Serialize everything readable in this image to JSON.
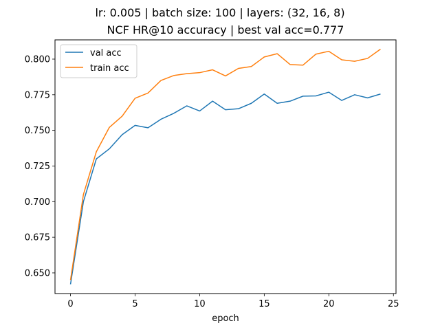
{
  "chart_data": {
    "type": "line",
    "title_line1": "lr: 0.005 | batch size: 100 | layers: (32, 16, 8)",
    "title_line2": "NCF HR@10 accuracy | best val acc=0.777",
    "xlabel": "epoch",
    "ylabel": "",
    "xlim": [
      -1.2,
      25.2
    ],
    "ylim": [
      0.6355,
      0.8135
    ],
    "xticks": [
      0,
      5,
      10,
      15,
      20,
      25
    ],
    "yticks": [
      0.65,
      0.675,
      0.7,
      0.725,
      0.75,
      0.775,
      0.8
    ],
    "ytick_labels": [
      "0.650",
      "0.675",
      "0.700",
      "0.725",
      "0.750",
      "0.775",
      "0.800"
    ],
    "grid": false,
    "legend_position": "top-left",
    "x": [
      0,
      1,
      2,
      3,
      4,
      5,
      6,
      7,
      8,
      9,
      10,
      11,
      12,
      13,
      14,
      15,
      16,
      17,
      18,
      19,
      20,
      21,
      22,
      23,
      24
    ],
    "series": [
      {
        "name": "val acc",
        "color": "#1f77b4",
        "values": [
          0.642,
          0.7,
          0.73,
          0.737,
          0.747,
          0.7535,
          0.7518,
          0.7578,
          0.762,
          0.7672,
          0.7636,
          0.7705,
          0.7645,
          0.7652,
          0.769,
          0.7755,
          0.769,
          0.7705,
          0.774,
          0.7742,
          0.7768,
          0.771,
          0.775,
          0.7728,
          0.7755
        ]
      },
      {
        "name": "train acc",
        "color": "#ff7f0e",
        "values": [
          0.645,
          0.705,
          0.735,
          0.752,
          0.76,
          0.7725,
          0.7762,
          0.785,
          0.7885,
          0.7898,
          0.7905,
          0.7925,
          0.7882,
          0.7935,
          0.7948,
          0.8015,
          0.8038,
          0.7962,
          0.7958,
          0.8035,
          0.8055,
          0.7995,
          0.7985,
          0.8005,
          0.807
        ]
      }
    ]
  }
}
